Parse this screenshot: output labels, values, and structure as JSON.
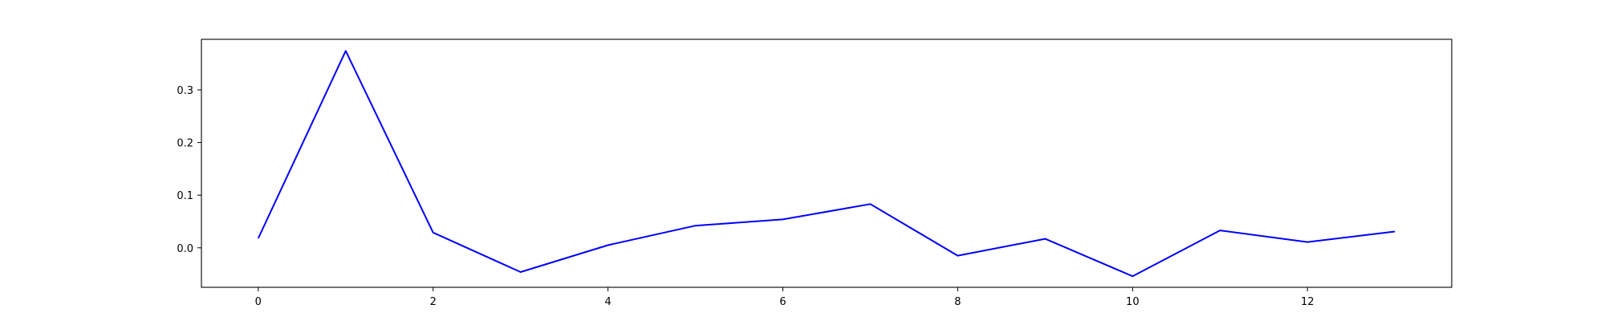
{
  "chart_data": {
    "type": "line",
    "title": "",
    "xlabel": "",
    "ylabel": "",
    "xlim": [
      -0.65,
      13.65
    ],
    "ylim": [
      -0.075,
      0.396
    ],
    "grid": false,
    "x_ticks": [
      0,
      2,
      4,
      6,
      8,
      10,
      12
    ],
    "x_tick_labels": [
      "0",
      "2",
      "4",
      "6",
      "8",
      "10",
      "12"
    ],
    "y_ticks": [
      0.0,
      0.1,
      0.2,
      0.3
    ],
    "y_tick_labels": [
      "0.0",
      "0.1",
      "0.2",
      "0.3"
    ],
    "series": [
      {
        "color": "#0000ff",
        "x": [
          0,
          1,
          2,
          3,
          4,
          5,
          6,
          7,
          8,
          9,
          10,
          11,
          12,
          13
        ],
        "y": [
          0.018,
          0.374,
          0.029,
          -0.046,
          0.005,
          0.042,
          0.054,
          0.083,
          -0.015,
          0.017,
          -0.054,
          0.033,
          0.011,
          0.031
        ]
      }
    ]
  }
}
